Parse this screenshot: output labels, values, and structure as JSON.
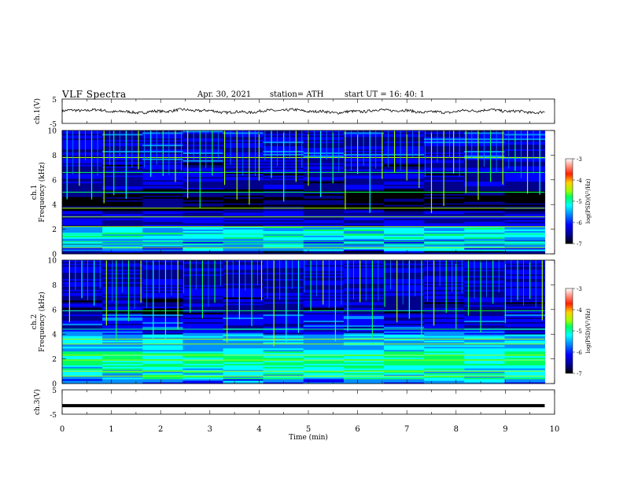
{
  "header": {
    "title": "VLF  Spectra",
    "date": "Apr. 30, 2021",
    "station": "station= ATH",
    "start": "start  UT  =    16: 40: 1"
  },
  "chart_data": [
    {
      "type": "line",
      "ylabel": "ch.1(V)",
      "ylim": [
        -5,
        5
      ],
      "yticks": [
        "5",
        "-5"
      ],
      "xlim": [
        0,
        10
      ],
      "baseline": 0,
      "amplitude_range": [
        -1,
        1
      ],
      "end_min": 9.8
    },
    {
      "type": "heatmap",
      "ylabel_channel": "ch.1",
      "ylabel": "Frequency  (kHz)",
      "ylim": [
        0,
        10
      ],
      "yticks": [
        "0",
        "2",
        "4",
        "6",
        "8",
        "10"
      ],
      "xlim": [
        0,
        10
      ],
      "end_min": 9.8,
      "colorbar": {
        "label": "log(PSD)(V²/Hz)",
        "range": [
          -7,
          -3
        ],
        "ticks": [
          "-3",
          "-4",
          "-5",
          "-6",
          "-7"
        ]
      },
      "bands_khz": [
        {
          "from": 0,
          "to": 0.3,
          "level": -6.6
        },
        {
          "from": 0.3,
          "to": 1.2,
          "level": -5.6
        },
        {
          "from": 1.2,
          "to": 2.3,
          "level": -5.3
        },
        {
          "from": 2.3,
          "to": 3.5,
          "level": -6.3
        },
        {
          "from": 3.5,
          "to": 5.2,
          "level": -6.9
        },
        {
          "from": 5.2,
          "to": 7.5,
          "level": -6.4
        },
        {
          "from": 7.5,
          "to": 10,
          "level": -6.2
        }
      ],
      "lines_khz": [
        0.5,
        0.8,
        1.0,
        1.6,
        2.2,
        3.0,
        3.7,
        5.0,
        6.6,
        7.8
      ],
      "spikes_min": [
        0.1,
        0.35,
        0.6,
        0.85,
        1.05,
        1.3,
        1.55,
        1.8,
        2.05,
        2.3,
        2.55,
        2.8,
        3.05,
        3.3,
        3.55,
        3.8,
        4.0,
        4.25,
        4.5,
        4.75,
        5.0,
        5.25,
        5.5,
        5.75,
        6.0,
        6.25,
        6.5,
        6.75,
        7.0,
        7.25,
        7.5,
        7.75,
        7.95,
        8.2,
        8.45,
        8.7,
        8.95,
        9.2,
        9.45,
        9.7
      ]
    },
    {
      "type": "heatmap",
      "ylabel_channel": "ch.2",
      "ylabel": "Frequency  (kHz)",
      "ylim": [
        0,
        10
      ],
      "yticks": [
        "0",
        "2",
        "4",
        "6",
        "8",
        "10"
      ],
      "xlim": [
        0,
        10
      ],
      "end_min": 9.8,
      "colorbar": {
        "label": "log(PSD)(V²/Hz)",
        "range": [
          -7,
          -3
        ],
        "ticks": [
          "-3",
          "-4",
          "-5",
          "-6",
          "-7"
        ]
      },
      "bands_khz": [
        {
          "from": 0,
          "to": 0.4,
          "level": -5.8
        },
        {
          "from": 0.4,
          "to": 1.4,
          "level": -5.2
        },
        {
          "from": 1.4,
          "to": 2.6,
          "level": -5.0
        },
        {
          "from": 2.6,
          "to": 4.0,
          "level": -5.5
        },
        {
          "from": 4.0,
          "to": 5.6,
          "level": -6.1
        },
        {
          "from": 5.6,
          "to": 7.0,
          "level": -6.5
        },
        {
          "from": 7.0,
          "to": 10,
          "level": -6.3
        }
      ],
      "lines_khz": [
        0.6,
        1.0,
        1.9,
        2.3,
        3.2,
        3.6,
        4.4,
        5.9
      ],
      "spikes_min": [
        0.15,
        0.4,
        0.65,
        0.9,
        1.1,
        1.35,
        1.6,
        1.85,
        2.1,
        2.35,
        2.6,
        2.85,
        3.1,
        3.35,
        3.6,
        3.85,
        4.05,
        4.3,
        4.55,
        4.8,
        5.05,
        5.3,
        5.55,
        5.8,
        6.05,
        6.3,
        6.55,
        6.8,
        7.05,
        7.3,
        7.55,
        7.8,
        8.0,
        8.25,
        8.5,
        8.75,
        9.0,
        9.25,
        9.5,
        9.75
      ]
    },
    {
      "type": "line",
      "ylabel": "ch.3(V)",
      "ylim": [
        -5,
        5
      ],
      "yticks": [
        "5",
        "-5"
      ],
      "xlim": [
        0,
        10
      ],
      "value": -1.5,
      "end_min": 9.8
    }
  ],
  "x_axis": {
    "label": "Time  (min)",
    "ticks": [
      "0",
      "1",
      "2",
      "3",
      "4",
      "5",
      "6",
      "7",
      "8",
      "9",
      "10"
    ]
  },
  "colors": {
    "colormap": [
      "#000000",
      "#00008c",
      "#0000ff",
      "#0090ff",
      "#00ffff",
      "#00ff60",
      "#a0ff00",
      "#ffd000",
      "#ff2000",
      "#ffffff"
    ]
  }
}
